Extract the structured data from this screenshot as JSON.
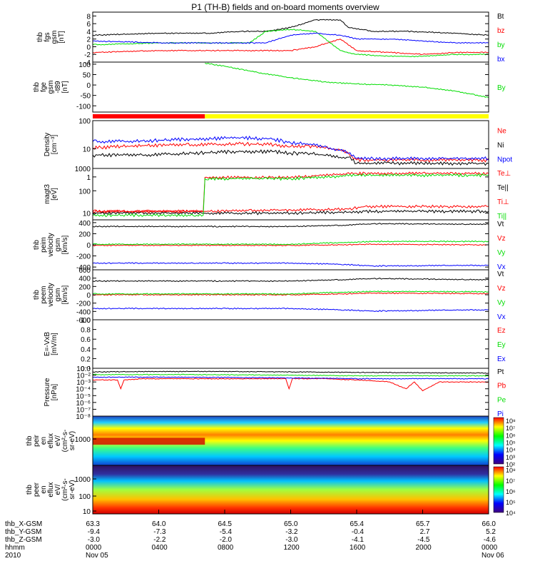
{
  "title": "P1 (TH-B) fields and on-board moments overview",
  "colors": {
    "black": "#000000",
    "red": "#ff0000",
    "green": "#00dd00",
    "blue": "#0000ff",
    "yellow": "#ffff00"
  },
  "time_ticks": [
    "0000",
    "0400",
    "0800",
    "1200",
    "1600",
    "2000",
    "0000"
  ],
  "ephemeris": {
    "rows": [
      {
        "label": "thb_X-GSM",
        "values": [
          "63.3",
          "64.0",
          "64.5",
          "65.0",
          "65.4",
          "65.7",
          "66.0"
        ]
      },
      {
        "label": "thb_Y-GSM",
        "values": [
          "-9.4",
          "-7.3",
          "-5.4",
          "-3.2",
          "-0.4",
          "2.7",
          "5.2"
        ]
      },
      {
        "label": "thb_Z-GSM",
        "values": [
          "-3.0",
          "-2.2",
          "-2.0",
          "-3.0",
          "-4.1",
          "-4.5",
          "-4.6"
        ]
      },
      {
        "label": "hhmm",
        "values": [
          "0000",
          "0400",
          "0800",
          "1200",
          "1600",
          "2000",
          "0000"
        ]
      },
      {
        "label": "2010",
        "values": [
          "Nov 05",
          "",
          "",
          "",
          "",
          "",
          "Nov 06"
        ]
      }
    ]
  },
  "chart_data": [
    {
      "type": "line",
      "ylabel": [
        "thb",
        "fgs",
        "gsm",
        "[nT]"
      ],
      "ylim": [
        -4,
        9
      ],
      "yticks": [
        "8",
        "6",
        "4",
        "2",
        "0",
        "-2",
        "-4"
      ],
      "legend": [
        {
          "name": "Bt",
          "color": "black"
        },
        {
          "name": "bz",
          "color": "red"
        },
        {
          "name": "by",
          "color": "green"
        },
        {
          "name": "bx",
          "color": "blue"
        }
      ],
      "series": [
        {
          "name": "Bt",
          "x": [
            0,
            4,
            7,
            9,
            10.5,
            12,
            13.5,
            15,
            15.5,
            17,
            19,
            22,
            24
          ],
          "y": [
            3,
            3.5,
            3.5,
            4,
            4,
            5,
            7,
            7,
            5,
            4,
            4,
            3.5,
            3
          ]
        },
        {
          "name": "bz",
          "x": [
            0,
            4,
            7,
            9,
            10.5,
            12,
            13.5,
            15,
            16,
            18,
            20,
            22,
            24
          ],
          "y": [
            -1.5,
            -1,
            -1,
            -1,
            -1,
            -1,
            0,
            2,
            -1,
            -1.5,
            -2,
            -1.5,
            -1.5
          ]
        },
        {
          "name": "by",
          "x": [
            0,
            4,
            7,
            9.5,
            10.5,
            12,
            13.5,
            15,
            16,
            18,
            20,
            22,
            24
          ],
          "y": [
            0.5,
            1,
            1,
            1,
            4,
            4.5,
            4,
            -1,
            -2,
            -2.5,
            -2.5,
            -2,
            -2
          ]
        },
        {
          "name": "bx",
          "x": [
            0,
            4,
            7,
            9,
            10.5,
            12,
            13.5,
            15,
            16,
            18,
            20,
            22,
            24
          ],
          "y": [
            1.5,
            1,
            1,
            1,
            1,
            3,
            3.5,
            3,
            2,
            2,
            1.5,
            1,
            1
          ]
        }
      ]
    },
    {
      "type": "line",
      "ylabel": [
        "thb",
        "fge",
        "gsm",
        "-t89",
        "[nT]"
      ],
      "ylim": [
        -130,
        110
      ],
      "yticks": [
        "100",
        "50",
        "0",
        "-50",
        "-100"
      ],
      "legend": [
        {
          "name": "By",
          "color": "green"
        }
      ],
      "series": [
        {
          "name": "By",
          "x": [
            6.8,
            8,
            10,
            12,
            14,
            16,
            18,
            20,
            22,
            24
          ],
          "y": [
            105,
            90,
            60,
            35,
            15,
            5,
            0,
            -10,
            -30,
            -60
          ]
        }
      ]
    },
    {
      "type": "bar",
      "segments": [
        {
          "x0": 0,
          "x1": 6.8,
          "color": "red"
        },
        {
          "x0": 6.8,
          "x1": 24,
          "color": "yellow"
        }
      ]
    },
    {
      "type": "line",
      "log": true,
      "ylabel": [
        "Density",
        "[cm^-3]"
      ],
      "ylim": [
        2,
        100
      ],
      "yticks": [
        "100",
        "10",
        "1"
      ],
      "legend": [
        {
          "name": "Ne",
          "color": "red"
        },
        {
          "name": "Ni",
          "color": "black"
        },
        {
          "name": "Npot",
          "color": "blue"
        }
      ],
      "series": [
        {
          "name": "Ne",
          "x": [
            0,
            3,
            6,
            9,
            11,
            12,
            13,
            14,
            15,
            15.5,
            16,
            17,
            18,
            20,
            22,
            24
          ],
          "y": [
            11,
            13,
            14,
            15,
            14,
            12,
            13,
            11,
            9,
            7,
            4,
            4,
            4,
            4,
            4,
            4
          ]
        },
        {
          "name": "Ni",
          "x": [
            0,
            3,
            6,
            9,
            11,
            12,
            13,
            14,
            15,
            15.5,
            16,
            17,
            18,
            20,
            22,
            24
          ],
          "y": [
            6,
            6,
            7,
            8,
            8,
            7,
            7,
            6,
            5,
            5,
            3,
            3,
            3.2,
            3,
            3,
            3
          ]
        },
        {
          "name": "Npot",
          "x": [
            0,
            3,
            6,
            9,
            11,
            12,
            13,
            14,
            15,
            15.5,
            16,
            17,
            18,
            20,
            22,
            24
          ],
          "y": [
            18,
            19,
            22,
            25,
            22,
            16,
            15,
            12,
            9,
            7,
            4.5,
            4.5,
            4.5,
            4.5,
            4.5,
            4.5
          ]
        }
      ]
    },
    {
      "type": "line",
      "log": true,
      "ylabel": [
        "magt3",
        "[eV]"
      ],
      "ylim": [
        5,
        1000
      ],
      "yticks": [
        "1000",
        "100",
        "10"
      ],
      "legend": [
        {
          "name": "Te⊥",
          "color": "red"
        },
        {
          "name": "Te||",
          "color": "black"
        },
        {
          "name": "Ti⊥",
          "color": "red"
        },
        {
          "name": "Ti||",
          "color": "green"
        }
      ],
      "series": [
        {
          "name": "Te⊥",
          "x": [
            0,
            6.8,
            12,
            15.5,
            16.5,
            24
          ],
          "y": [
            12,
            12,
            14,
            15,
            20,
            20
          ]
        },
        {
          "name": "Te||",
          "x": [
            0,
            6.8,
            12,
            15.5,
            16.5,
            24
          ],
          "y": [
            10,
            10,
            10,
            11,
            12,
            12
          ]
        },
        {
          "name": "Ti⊥",
          "x": [
            0,
            6.7,
            6.8,
            12,
            16,
            24
          ],
          "y": [
            12,
            12,
            400,
            400,
            600,
            600
          ]
        },
        {
          "name": "Ti||",
          "x": [
            0,
            6.7,
            6.8,
            12,
            16,
            24
          ],
          "y": [
            8,
            8,
            350,
            350,
            500,
            500
          ]
        }
      ]
    },
    {
      "type": "line",
      "ylabel": [
        "thb",
        "peim",
        "velocity",
        "gsm",
        "[km/s]"
      ],
      "ylim": [
        -450,
        450
      ],
      "yticks": [
        "400",
        "200",
        "0",
        "-200",
        "-400"
      ],
      "legend": [
        {
          "name": "Vt",
          "color": "black"
        },
        {
          "name": "Vz",
          "color": "red"
        },
        {
          "name": "Vy",
          "color": "green"
        },
        {
          "name": "Vx",
          "color": "blue"
        }
      ],
      "series": [
        {
          "name": "Vt",
          "x": [
            0,
            12,
            15,
            17,
            24
          ],
          "y": [
            330,
            330,
            350,
            380,
            370
          ]
        },
        {
          "name": "Vz",
          "x": [
            0,
            12,
            15,
            17,
            24
          ],
          "y": [
            -10,
            -10,
            0,
            10,
            0
          ]
        },
        {
          "name": "Vy",
          "x": [
            0,
            12,
            15,
            17,
            24
          ],
          "y": [
            10,
            10,
            40,
            60,
            60
          ]
        },
        {
          "name": "Vx",
          "x": [
            0,
            12,
            15,
            17,
            24
          ],
          "y": [
            -330,
            -330,
            -350,
            -380,
            -370
          ]
        }
      ]
    },
    {
      "type": "line",
      "ylabel": [
        "thb",
        "peem",
        "velocity",
        "gsm",
        "[km/s]"
      ],
      "ylim": [
        -600,
        600
      ],
      "yticks": [
        "600",
        "400",
        "200",
        "0",
        "-200",
        "-400",
        "-600"
      ],
      "legend": [
        {
          "name": "Vt",
          "color": "black"
        },
        {
          "name": "Vz",
          "color": "red"
        },
        {
          "name": "Vy",
          "color": "green"
        },
        {
          "name": "Vx",
          "color": "blue"
        }
      ],
      "series": [
        {
          "name": "Vt",
          "x": [
            0,
            12,
            15,
            17,
            24
          ],
          "y": [
            330,
            330,
            360,
            390,
            360
          ]
        },
        {
          "name": "Vz",
          "x": [
            0,
            12,
            15,
            17,
            24
          ],
          "y": [
            0,
            0,
            20,
            40,
            30
          ]
        },
        {
          "name": "Vy",
          "x": [
            0,
            12,
            15,
            17,
            24
          ],
          "y": [
            20,
            20,
            60,
            80,
            70
          ]
        },
        {
          "name": "Vx",
          "x": [
            0,
            12,
            15,
            17,
            24
          ],
          "y": [
            -330,
            -330,
            -360,
            -390,
            -360
          ]
        }
      ]
    },
    {
      "type": "line",
      "ylabel": [
        "E=-VxB",
        "[mV/m]"
      ],
      "ylim": [
        0,
        1
      ],
      "yticks": [
        "1.0",
        "0.8",
        "0.6",
        "0.4",
        "0.2",
        "0.0"
      ],
      "legend": [
        {
          "name": "Ez",
          "color": "red"
        },
        {
          "name": "Ey",
          "color": "green"
        },
        {
          "name": "Ex",
          "color": "blue"
        }
      ],
      "series": []
    },
    {
      "type": "line",
      "log": true,
      "ylabel": [
        "Pressure",
        "[nPa]"
      ],
      "ylim": [
        1e-08,
        0.1
      ],
      "yticks": [
        "10^-1",
        "10^-2",
        "10^-3",
        "10^-4",
        "10^-5",
        "10^-6",
        "10^-7",
        "10^-8"
      ],
      "legend": [
        {
          "name": "Pt",
          "color": "black"
        },
        {
          "name": "Pb",
          "color": "red"
        },
        {
          "name": "Pe",
          "color": "green"
        },
        {
          "name": "Pi",
          "color": "blue"
        }
      ],
      "series": [
        {
          "name": "Pt",
          "x": [
            0,
            6,
            12,
            16,
            24
          ],
          "y": [
            0.03,
            0.035,
            0.03,
            0.025,
            0.02
          ]
        },
        {
          "name": "Pb",
          "x": [
            0,
            1.5,
            1.7,
            1.9,
            3,
            6,
            9,
            11.7,
            11.9,
            12.1,
            14,
            16,
            18,
            19,
            19.5,
            20,
            21,
            22,
            24
          ],
          "y": [
            0.002,
            0.002,
            0.0001,
            0.002,
            0.003,
            0.003,
            0.003,
            0.003,
            0.0001,
            0.003,
            0.003,
            0.002,
            0.001,
            0.0001,
            0.001,
            5e-05,
            0.001,
            0.001,
            0.001
          ]
        },
        {
          "name": "Pe",
          "x": [
            0,
            6,
            12,
            16,
            24
          ],
          "y": [
            0.012,
            0.012,
            0.01,
            0.008,
            0.008
          ]
        },
        {
          "name": "Pi",
          "x": [
            0,
            6,
            12,
            16,
            24
          ],
          "y": [
            0.005,
            0.005,
            0.004,
            0.003,
            0.003
          ]
        }
      ]
    },
    {
      "type": "heatmap",
      "ylabel": [
        "thb",
        "peir",
        "en",
        "eflux",
        "eV/",
        "(cm^2-s-",
        "sr-eV)"
      ],
      "yticks": [
        "1000"
      ],
      "colorbar_ticks": [
        "10^8",
        "10^7",
        "10^6",
        "10^5",
        "10^4",
        "10^3",
        "10^2"
      ]
    },
    {
      "type": "heatmap",
      "ylabel": [
        "thb",
        "peer",
        "en",
        "eflux",
        "eV/",
        "(cm^2-s-",
        "sr-eV)"
      ],
      "yticks": [
        "1000",
        "100",
        "10"
      ],
      "colorbar_ticks": [
        "10^8",
        "10^7",
        "10^6",
        "10^5",
        "10^4"
      ]
    }
  ]
}
